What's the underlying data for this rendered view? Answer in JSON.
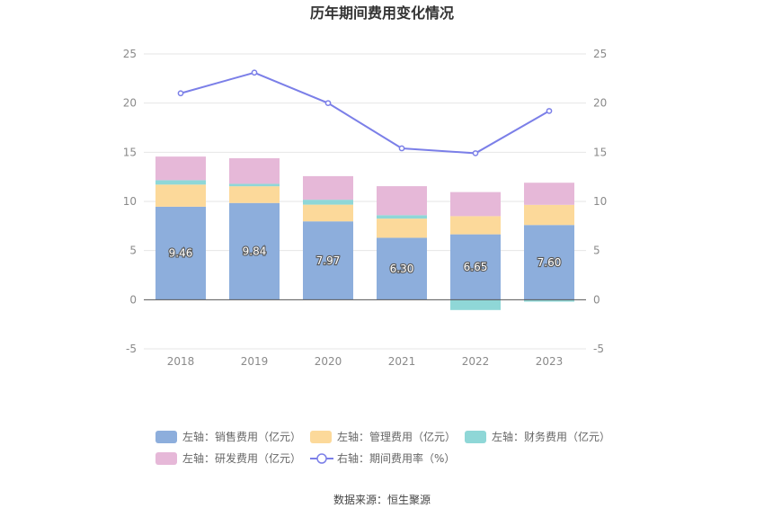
{
  "chart_data": {
    "type": "bar",
    "title": "历年期间费用变化情况",
    "categories": [
      "2018",
      "2019",
      "2020",
      "2021",
      "2022",
      "2023"
    ],
    "left_axis": {
      "ylim": [
        -5,
        25
      ],
      "ticks": [
        "-5",
        "0",
        "5",
        "10",
        "15",
        "20",
        "25"
      ]
    },
    "right_axis": {
      "ylim": [
        -5,
        25
      ],
      "ticks": [
        "-5",
        "0",
        "5",
        "10",
        "15",
        "20",
        "25"
      ]
    },
    "series": [
      {
        "name": "左轴：销售费用（亿元）",
        "type": "stacked-bar",
        "color": "#8daedc",
        "values": [
          9.46,
          9.84,
          7.97,
          6.3,
          6.65,
          7.6
        ],
        "labels": [
          "9.46",
          "9.84",
          "7.97",
          "6.30",
          "6.65",
          "7.60"
        ]
      },
      {
        "name": "左轴：管理费用（亿元）",
        "type": "stacked-bar",
        "color": "#fcd99a",
        "values": [
          2.25,
          1.7,
          1.7,
          1.95,
          1.85,
          2.05
        ]
      },
      {
        "name": "左轴：财务费用（亿元）",
        "type": "stacked-bar",
        "color": "#8fd7d7",
        "values": [
          0.45,
          0.25,
          0.5,
          0.35,
          -1.05,
          -0.2
        ]
      },
      {
        "name": "左轴：研发费用（亿元）",
        "type": "stacked-bar",
        "color": "#e6b8d8",
        "values": [
          2.4,
          2.6,
          2.4,
          2.95,
          2.45,
          2.25
        ]
      },
      {
        "name": "右轴：期间费用率（%）",
        "type": "line",
        "color": "#7b7fe8",
        "values": [
          21.0,
          23.1,
          20.0,
          15.4,
          14.9,
          19.2
        ]
      }
    ],
    "source": "数据来源：恒生聚源"
  }
}
